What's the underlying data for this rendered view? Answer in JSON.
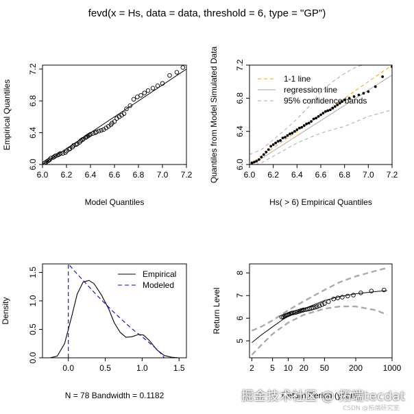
{
  "suptitle": "fevd(x = Hs, data = data, threshold = 6, type = \"GP\")",
  "watermark": {
    "brand": "掘金技术社区 @ 拓端tecdat",
    "credit": "CSDN @拓端研究室"
  },
  "chart_data": [
    {
      "id": "qq",
      "type": "scatter",
      "xlabel": "Model Quantiles",
      "ylabel": "Empirical Quantiles",
      "xlim": [
        6.0,
        7.2
      ],
      "ylim": [
        6.0,
        7.25
      ],
      "xticks": [
        "6.0",
        "6.2",
        "6.4",
        "6.6",
        "6.8",
        "7.0",
        "7.2"
      ],
      "yticks": [
        "6.0",
        "6.4",
        "6.8",
        "7.2"
      ],
      "points": [
        [
          6.02,
          6.02
        ],
        [
          6.03,
          6.03
        ],
        [
          6.04,
          6.04
        ],
        [
          6.05,
          6.05
        ],
        [
          6.06,
          6.06
        ],
        [
          6.07,
          6.08
        ],
        [
          6.09,
          6.09
        ],
        [
          6.1,
          6.1
        ],
        [
          6.11,
          6.11
        ],
        [
          6.13,
          6.12
        ],
        [
          6.14,
          6.13
        ],
        [
          6.15,
          6.14
        ],
        [
          6.17,
          6.14
        ],
        [
          6.19,
          6.15
        ],
        [
          6.2,
          6.17
        ],
        [
          6.22,
          6.19
        ],
        [
          6.23,
          6.2
        ],
        [
          6.25,
          6.22
        ],
        [
          6.26,
          6.24
        ],
        [
          6.28,
          6.25
        ],
        [
          6.29,
          6.26
        ],
        [
          6.31,
          6.28
        ],
        [
          6.32,
          6.3
        ],
        [
          6.33,
          6.31
        ],
        [
          6.34,
          6.32
        ],
        [
          6.36,
          6.34
        ],
        [
          6.37,
          6.35
        ],
        [
          6.38,
          6.36
        ],
        [
          6.39,
          6.37
        ],
        [
          6.4,
          6.38
        ],
        [
          6.42,
          6.39
        ],
        [
          6.44,
          6.4
        ],
        [
          6.45,
          6.41
        ],
        [
          6.47,
          6.42
        ],
        [
          6.49,
          6.43
        ],
        [
          6.51,
          6.44
        ],
        [
          6.53,
          6.46
        ],
        [
          6.55,
          6.48
        ],
        [
          6.57,
          6.5
        ],
        [
          6.58,
          6.52
        ],
        [
          6.6,
          6.54
        ],
        [
          6.62,
          6.58
        ],
        [
          6.64,
          6.6
        ],
        [
          6.66,
          6.62
        ],
        [
          6.68,
          6.64
        ],
        [
          6.7,
          6.7
        ],
        [
          6.73,
          6.74
        ],
        [
          6.76,
          6.82
        ],
        [
          6.79,
          6.85
        ],
        [
          6.82,
          6.87
        ],
        [
          6.85,
          6.9
        ],
        [
          6.88,
          6.93
        ],
        [
          6.92,
          6.96
        ],
        [
          6.96,
          6.99
        ],
        [
          7.0,
          7.02
        ],
        [
          7.06,
          7.12
        ],
        [
          7.12,
          7.16
        ],
        [
          7.17,
          7.22
        ]
      ],
      "line": [
        [
          6.0,
          6.0
        ],
        [
          7.2,
          7.2
        ]
      ]
    },
    {
      "id": "sim",
      "type": "scatter",
      "xlabel": "Hs( > 6) Empirical Quantiles",
      "ylabel": "Quantiles from Model Simulated Data",
      "xlim": [
        6.0,
        7.2
      ],
      "ylim": [
        6.0,
        7.2
      ],
      "xticks": [
        "6.0",
        "6.2",
        "6.4",
        "6.6",
        "6.8",
        "7.0",
        "7.2"
      ],
      "yticks": [
        "6.0",
        "6.4",
        "6.8",
        "7.2"
      ],
      "legend": {
        "position": "top-left",
        "entries": [
          "1-1 line",
          "regression line",
          "95% confidence bands"
        ],
        "colors": [
          "#ff9900",
          "#aaaaaa",
          "#aaaaaa"
        ]
      },
      "points": [
        [
          6.02,
          6.02
        ],
        [
          6.04,
          6.03
        ],
        [
          6.06,
          6.04
        ],
        [
          6.08,
          6.06
        ],
        [
          6.1,
          6.09
        ],
        [
          6.12,
          6.12
        ],
        [
          6.14,
          6.15
        ],
        [
          6.16,
          6.18
        ],
        [
          6.18,
          6.22
        ],
        [
          6.2,
          6.24
        ],
        [
          6.22,
          6.26
        ],
        [
          6.24,
          6.28
        ],
        [
          6.26,
          6.29
        ],
        [
          6.28,
          6.32
        ],
        [
          6.3,
          6.33
        ],
        [
          6.32,
          6.35
        ],
        [
          6.34,
          6.37
        ],
        [
          6.36,
          6.38
        ],
        [
          6.38,
          6.4
        ],
        [
          6.4,
          6.42
        ],
        [
          6.42,
          6.44
        ],
        [
          6.44,
          6.45
        ],
        [
          6.46,
          6.47
        ],
        [
          6.48,
          6.49
        ],
        [
          6.5,
          6.5
        ],
        [
          6.52,
          6.52
        ],
        [
          6.54,
          6.55
        ],
        [
          6.56,
          6.56
        ],
        [
          6.58,
          6.58
        ],
        [
          6.6,
          6.6
        ],
        [
          6.62,
          6.62
        ],
        [
          6.64,
          6.64
        ],
        [
          6.66,
          6.65
        ],
        [
          6.68,
          6.66
        ],
        [
          6.7,
          6.68
        ],
        [
          6.72,
          6.7
        ],
        [
          6.74,
          6.72
        ],
        [
          6.76,
          6.74
        ],
        [
          6.78,
          6.76
        ],
        [
          6.8,
          6.78
        ],
        [
          6.84,
          6.8
        ],
        [
          6.88,
          6.82
        ],
        [
          6.92,
          6.84
        ],
        [
          6.96,
          6.86
        ],
        [
          7.0,
          6.88
        ],
        [
          7.06,
          6.94
        ],
        [
          7.12,
          7.06
        ],
        [
          7.2,
          7.18
        ]
      ],
      "one_to_one": [
        [
          6.0,
          6.0
        ],
        [
          7.2,
          7.2
        ]
      ],
      "regression": [
        [
          6.0,
          5.98
        ],
        [
          7.2,
          7.08
        ]
      ],
      "band_upper": [
        [
          6.0,
          6.12
        ],
        [
          6.1,
          6.18
        ],
        [
          6.2,
          6.3
        ],
        [
          6.3,
          6.42
        ],
        [
          6.4,
          6.55
        ],
        [
          6.5,
          6.7
        ],
        [
          6.6,
          6.88
        ],
        [
          6.7,
          7.0
        ],
        [
          6.8,
          7.1
        ],
        [
          6.9,
          7.18
        ],
        [
          7.0,
          7.22
        ],
        [
          7.1,
          7.25
        ],
        [
          7.2,
          7.28
        ]
      ],
      "band_lower": [
        [
          6.0,
          5.98
        ],
        [
          6.1,
          6.02
        ],
        [
          6.2,
          6.1
        ],
        [
          6.3,
          6.18
        ],
        [
          6.4,
          6.26
        ],
        [
          6.5,
          6.32
        ],
        [
          6.6,
          6.38
        ],
        [
          6.7,
          6.42
        ],
        [
          6.8,
          6.46
        ],
        [
          6.9,
          6.52
        ],
        [
          7.0,
          6.58
        ],
        [
          7.1,
          6.62
        ],
        [
          7.2,
          6.66
        ]
      ]
    },
    {
      "id": "density",
      "type": "line",
      "xlabel": "N = 78   Bandwidth = 0.1182",
      "ylabel": "Density",
      "xlim": [
        -0.35,
        1.6
      ],
      "ylim": [
        0,
        1.65
      ],
      "xticks": [
        "0.0",
        "0.5",
        "1.0",
        "1.5"
      ],
      "yticks": [
        "0.0",
        "0.5",
        "1.0",
        "1.5"
      ],
      "legend": {
        "position": "top-right",
        "entries": [
          "Empirical",
          "Modeled"
        ]
      },
      "series": [
        {
          "name": "Empirical",
          "style": "solid",
          "color": "#000000",
          "points": [
            [
              -0.35,
              0.0
            ],
            [
              -0.25,
              0.0
            ],
            [
              -0.15,
              0.03
            ],
            [
              -0.05,
              0.25
            ],
            [
              0.05,
              0.75
            ],
            [
              0.12,
              1.12
            ],
            [
              0.2,
              1.33
            ],
            [
              0.28,
              1.36
            ],
            [
              0.35,
              1.3
            ],
            [
              0.45,
              1.1
            ],
            [
              0.55,
              0.85
            ],
            [
              0.62,
              0.62
            ],
            [
              0.7,
              0.45
            ],
            [
              0.78,
              0.36
            ],
            [
              0.86,
              0.37
            ],
            [
              0.95,
              0.41
            ],
            [
              1.02,
              0.4
            ],
            [
              1.1,
              0.3
            ],
            [
              1.2,
              0.14
            ],
            [
              1.3,
              0.04
            ],
            [
              1.4,
              0.01
            ],
            [
              1.5,
              0.0
            ],
            [
              1.6,
              0.0
            ]
          ]
        },
        {
          "name": "Modeled",
          "style": "dashed",
          "color": "#0000cc",
          "points": [
            [
              0.0,
              0.0
            ],
            [
              0.0,
              1.65
            ],
            [
              0.1,
              1.5
            ],
            [
              0.2,
              1.36
            ],
            [
              0.3,
              1.22
            ],
            [
              0.4,
              1.08
            ],
            [
              0.5,
              0.95
            ],
            [
              0.6,
              0.82
            ],
            [
              0.7,
              0.7
            ],
            [
              0.8,
              0.58
            ],
            [
              0.9,
              0.47
            ],
            [
              1.0,
              0.37
            ],
            [
              1.1,
              0.26
            ],
            [
              1.2,
              0.15
            ],
            [
              1.25,
              0.08
            ],
            [
              1.3,
              0.0
            ]
          ]
        }
      ],
      "baseline_color": "#aaaaaa"
    },
    {
      "id": "return",
      "type": "line",
      "xlabel": "Return Period (years)",
      "ylabel": "Return Level",
      "xscale": "log",
      "xlim": [
        1.8,
        1000
      ],
      "ylim": [
        4.25,
        8.4
      ],
      "xticks": [
        2,
        5,
        10,
        20,
        50,
        200,
        1000
      ],
      "xticklabels": [
        "2",
        "5",
        "10",
        "20",
        "50",
        "200",
        "1000"
      ],
      "yticks": [
        "5",
        "6",
        "7",
        "8"
      ],
      "estimate": [
        [
          2,
          4.92
        ],
        [
          3,
          5.25
        ],
        [
          5,
          5.62
        ],
        [
          8,
          5.95
        ],
        [
          10,
          6.08
        ],
        [
          20,
          6.42
        ],
        [
          50,
          6.78
        ],
        [
          100,
          6.96
        ],
        [
          200,
          7.08
        ],
        [
          500,
          7.18
        ],
        [
          800,
          7.22
        ]
      ],
      "ci_upper": [
        [
          2,
          5.45
        ],
        [
          3,
          5.62
        ],
        [
          5,
          5.9
        ],
        [
          10,
          6.35
        ],
        [
          20,
          6.75
        ],
        [
          50,
          7.25
        ],
        [
          100,
          7.6
        ],
        [
          200,
          7.85
        ],
        [
          500,
          8.1
        ],
        [
          800,
          8.22
        ]
      ],
      "ci_lower": [
        [
          2,
          4.38
        ],
        [
          3,
          4.8
        ],
        [
          5,
          5.3
        ],
        [
          10,
          5.8
        ],
        [
          20,
          6.15
        ],
        [
          50,
          6.42
        ],
        [
          100,
          6.52
        ],
        [
          200,
          6.52
        ],
        [
          500,
          6.35
        ],
        [
          800,
          6.15
        ]
      ],
      "points": [
        [
          7.5,
          6.05
        ],
        [
          8,
          6.07
        ],
        [
          8.5,
          6.1
        ],
        [
          9,
          6.12
        ],
        [
          9.5,
          6.14
        ],
        [
          10,
          6.16
        ],
        [
          10.5,
          6.18
        ],
        [
          11,
          6.2
        ],
        [
          11.5,
          6.22
        ],
        [
          12,
          6.23
        ],
        [
          13,
          6.24
        ],
        [
          14,
          6.26
        ],
        [
          15,
          6.28
        ],
        [
          16,
          6.3
        ],
        [
          17,
          6.32
        ],
        [
          18,
          6.34
        ],
        [
          19,
          6.35
        ],
        [
          20,
          6.37
        ],
        [
          22,
          6.38
        ],
        [
          24,
          6.4
        ],
        [
          26,
          6.42
        ],
        [
          28,
          6.44
        ],
        [
          30,
          6.46
        ],
        [
          33,
          6.48
        ],
        [
          36,
          6.51
        ],
        [
          40,
          6.55
        ],
        [
          45,
          6.6
        ],
        [
          50,
          6.65
        ],
        [
          60,
          6.73
        ],
        [
          75,
          6.85
        ],
        [
          90,
          6.9
        ],
        [
          110,
          6.93
        ],
        [
          140,
          6.98
        ],
        [
          180,
          7.02
        ],
        [
          250,
          7.12
        ],
        [
          400,
          7.2
        ],
        [
          700,
          7.25
        ]
      ]
    }
  ]
}
